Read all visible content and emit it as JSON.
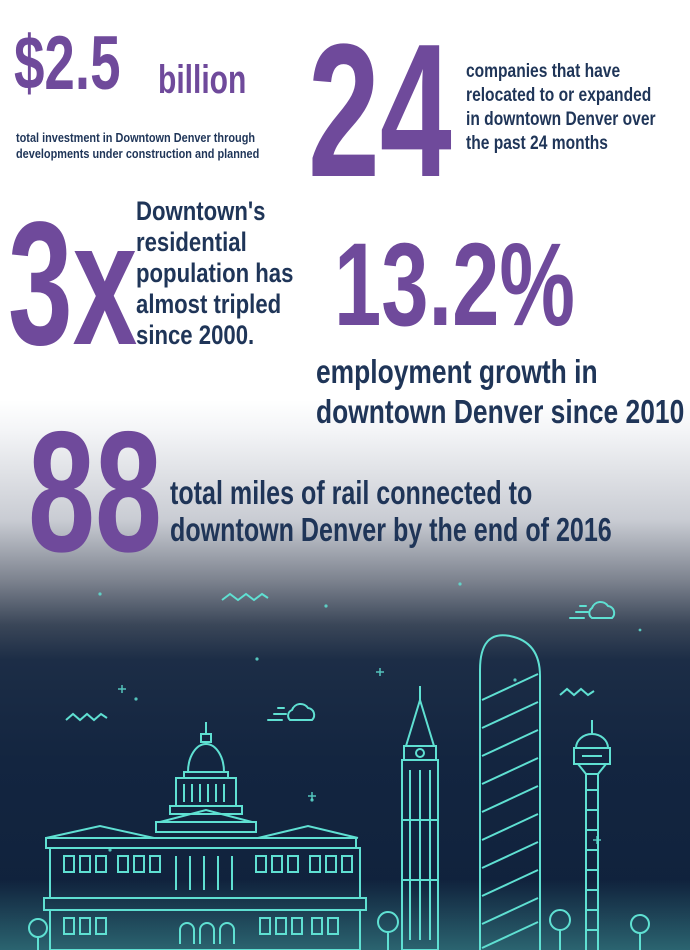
{
  "stats": {
    "investment": {
      "value": "$2.5",
      "unit": "billion",
      "caption_line1": "total investment in Downtown Denver through",
      "caption_line2": "developments under construction and planned"
    },
    "companies": {
      "value": "24",
      "caption_lines": [
        "companies that have",
        "relocated to or expanded",
        "in downtown Denver over",
        "the past 24 months"
      ]
    },
    "population": {
      "value": "3x",
      "caption_lines": [
        "Downtown's",
        "residential",
        "population has",
        "almost tripled",
        "since 2000."
      ]
    },
    "employment": {
      "value": "13.2%",
      "caption_line1": "employment growth in",
      "caption_line2": "downtown Denver since 2010"
    },
    "rail": {
      "value": "88",
      "caption_line1": "total miles of rail connected to",
      "caption_line2": "downtown Denver by the end of 2016"
    }
  },
  "colors": {
    "purple": "#6f4a9b",
    "navy": "#1f3558",
    "night_sky": "#132540",
    "line_art": "#5fe0d2"
  },
  "scene": {
    "icons": [
      "cloud-icon",
      "wave-icon",
      "capitol-building",
      "clock-tower",
      "skyscraper",
      "observation-tower",
      "tree-icon"
    ]
  }
}
